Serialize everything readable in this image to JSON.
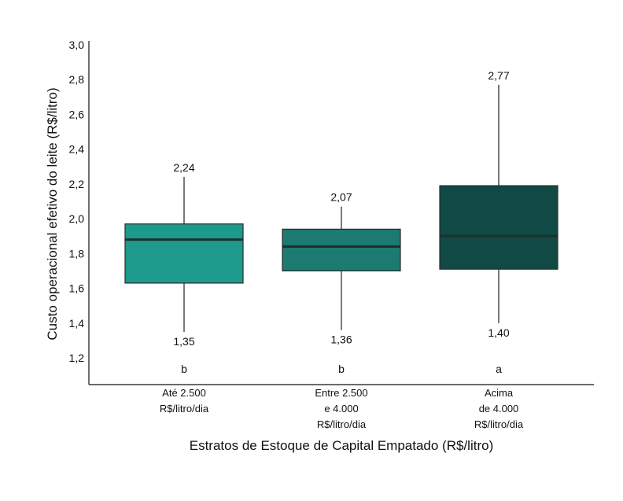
{
  "chart_data": {
    "type": "boxplot",
    "xlabel": "Estratos de Estoque de Capital Empatado (R$/litro)",
    "ylabel": "Custo operacional efetivo do leite (R$/litro)",
    "ylim": [
      1.2,
      3.0
    ],
    "yticks": [
      "1,2",
      "1,4",
      "1,6",
      "1,8",
      "2,0",
      "2,2",
      "2,4",
      "2,6",
      "2,8",
      "3,0"
    ],
    "grid": false,
    "categories": [
      {
        "lines": [
          "Até 2.500",
          "R$/litro/dia"
        ]
      },
      {
        "lines": [
          "Entre 2.500",
          "e 4.000",
          "R$/litro/dia"
        ]
      },
      {
        "lines": [
          "Acima",
          "de 4.000",
          "R$/litro/dia"
        ]
      }
    ],
    "boxes": [
      {
        "min": 1.35,
        "q1": 1.63,
        "median": 1.88,
        "q3": 1.97,
        "max": 2.24,
        "min_label": "1,35",
        "max_label": "2,24",
        "group": "b",
        "color": "#1e9a8c"
      },
      {
        "min": 1.36,
        "q1": 1.7,
        "median": 1.84,
        "q3": 1.94,
        "max": 2.07,
        "min_label": "1,36",
        "max_label": "2,07",
        "group": "b",
        "color": "#1d7a70"
      },
      {
        "min": 1.4,
        "q1": 1.71,
        "median": 1.9,
        "q3": 2.19,
        "max": 2.77,
        "min_label": "1,40",
        "max_label": "2,77",
        "group": "a",
        "color": "#114a44"
      }
    ]
  }
}
